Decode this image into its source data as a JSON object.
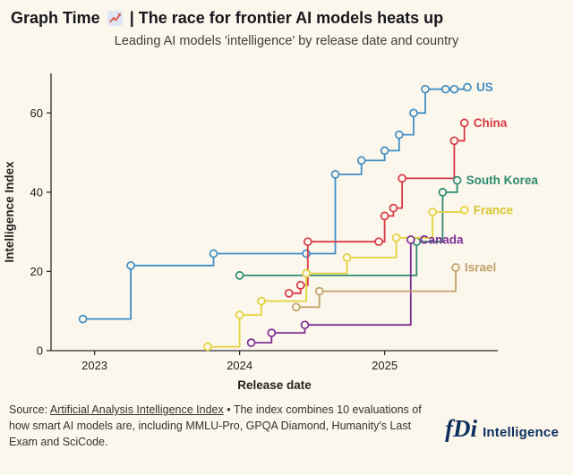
{
  "page": {
    "background": "#fcf7ec"
  },
  "header": {
    "title_prefix": "Graph Time",
    "title_icon": "chart-increasing-icon",
    "title_suffix": "| The race for frontier AI models heats up",
    "subtitle": "Leading AI models 'intelligence' by release date and country"
  },
  "chart_data": {
    "type": "line",
    "step": true,
    "title": "The race for frontier AI models heats up",
    "xlabel": "Release date",
    "ylabel": "Intelligence Index",
    "x_ticks": [
      2023,
      2024,
      2025
    ],
    "y_ticks": [
      0,
      20,
      40,
      60
    ],
    "xlim": [
      2022.7,
      2025.78
    ],
    "ylim": [
      0,
      70
    ],
    "background": "#fcf7ec",
    "grid": false,
    "legend": "end-of-line country labels",
    "series": [
      {
        "name": "US",
        "color": "#3f8ec6",
        "points": [
          [
            2022.92,
            8
          ],
          [
            2023.25,
            21.5
          ],
          [
            2023.82,
            24.5
          ],
          [
            2024.46,
            24.5
          ],
          [
            2024.66,
            44.5
          ],
          [
            2024.84,
            48
          ],
          [
            2025.0,
            50.5
          ],
          [
            2025.1,
            54.5
          ],
          [
            2025.2,
            60
          ],
          [
            2025.28,
            66
          ],
          [
            2025.42,
            66
          ],
          [
            2025.48,
            66
          ],
          [
            2025.57,
            66.5
          ]
        ]
      },
      {
        "name": "China",
        "color": "#d63a45",
        "points": [
          [
            2024.34,
            14.5
          ],
          [
            2024.42,
            16.5
          ],
          [
            2024.47,
            27.5
          ],
          [
            2024.96,
            27.5
          ],
          [
            2025.0,
            34
          ],
          [
            2025.06,
            36
          ],
          [
            2025.12,
            43.5
          ],
          [
            2025.48,
            53
          ],
          [
            2025.55,
            57.5
          ]
        ]
      },
      {
        "name": "South Korea",
        "color": "#2c8a72",
        "points": [
          [
            2024.0,
            19
          ],
          [
            2025.22,
            27.5
          ],
          [
            2025.4,
            40
          ],
          [
            2025.5,
            43
          ]
        ]
      },
      {
        "name": "France",
        "color": "#e3d23b",
        "label_color": "#d9c52e",
        "points": [
          [
            2023.78,
            1
          ],
          [
            2024.0,
            9
          ],
          [
            2024.15,
            12.5
          ],
          [
            2024.46,
            19.5
          ],
          [
            2024.74,
            23.5
          ],
          [
            2025.08,
            28.5
          ],
          [
            2025.33,
            35
          ],
          [
            2025.55,
            35.5
          ]
        ]
      },
      {
        "name": "Canada",
        "color": "#7d2f96",
        "points": [
          [
            2024.08,
            2
          ],
          [
            2024.22,
            4.5
          ],
          [
            2024.45,
            6.5
          ],
          [
            2025.18,
            28
          ]
        ]
      },
      {
        "name": "Israel",
        "color": "#c2a26c",
        "points": [
          [
            2024.39,
            11
          ],
          [
            2024.55,
            15
          ],
          [
            2025.49,
            21
          ]
        ]
      }
    ]
  },
  "footer": {
    "source_prefix": "Source: ",
    "source_link": "Artificial Analysis Intelligence Index",
    "source_rest": " • The index combines 10 evaluations of how smart AI models are, including MMLU-Pro, GPQA Diamond, Humanity's Last Exam and SciCode.",
    "logo_fdi": "fDi",
    "logo_word": "Intelligence"
  }
}
